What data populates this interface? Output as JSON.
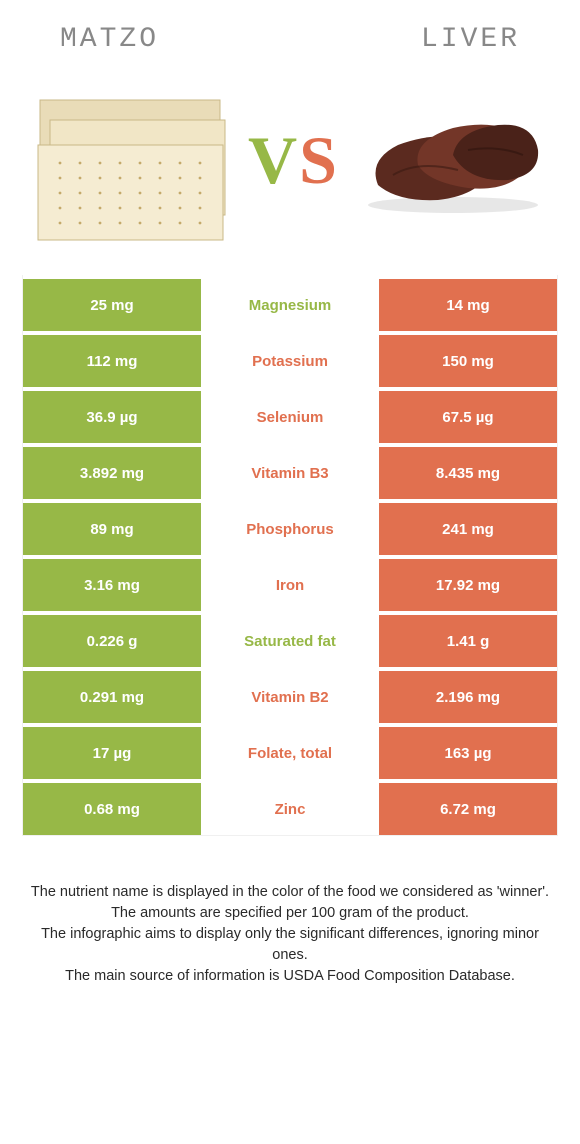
{
  "colors": {
    "green": "#97b847",
    "orange": "#e1704f",
    "title_gray": "#888888",
    "text_dark": "#2a2a2a",
    "row_border": "#ffffff"
  },
  "header": {
    "left_title": "Matzo",
    "right_title": "Liver"
  },
  "vs": {
    "v": "V",
    "s": "S"
  },
  "rows": [
    {
      "nutrient": "Magnesium",
      "left": "25 mg",
      "right": "14 mg",
      "winner": "left"
    },
    {
      "nutrient": "Potassium",
      "left": "112 mg",
      "right": "150 mg",
      "winner": "right"
    },
    {
      "nutrient": "Selenium",
      "left": "36.9 µg",
      "right": "67.5 µg",
      "winner": "right"
    },
    {
      "nutrient": "Vitamin B3",
      "left": "3.892 mg",
      "right": "8.435 mg",
      "winner": "right"
    },
    {
      "nutrient": "Phosphorus",
      "left": "89 mg",
      "right": "241 mg",
      "winner": "right"
    },
    {
      "nutrient": "Iron",
      "left": "3.16 mg",
      "right": "17.92 mg",
      "winner": "right"
    },
    {
      "nutrient": "Saturated fat",
      "left": "0.226 g",
      "right": "1.41 g",
      "winner": "left"
    },
    {
      "nutrient": "Vitamin B2",
      "left": "0.291 mg",
      "right": "2.196 mg",
      "winner": "right"
    },
    {
      "nutrient": "Folate, total",
      "left": "17 µg",
      "right": "163 µg",
      "winner": "right"
    },
    {
      "nutrient": "Zinc",
      "left": "0.68 mg",
      "right": "6.72 mg",
      "winner": "right"
    }
  ],
  "footnotes": [
    "The nutrient name is displayed in the color of the food we considered as 'winner'.",
    "The amounts are specified per 100 gram of the product.",
    "The infographic aims to display only the significant differences, ignoring minor ones.",
    "The main source of information is USDA Food Composition Database."
  ]
}
